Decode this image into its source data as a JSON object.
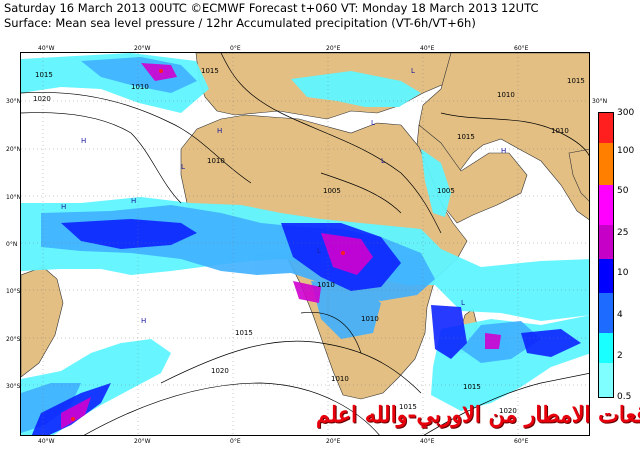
{
  "header": {
    "line1": "Saturday 16 March 2013 00UTC ©ECMWF Forecast t+060 VT: Monday 18 March 2013 12UTC",
    "line2": "Surface: Mean sea level pressure / 12hr Accumulated precipitation (VT-6h/VT+6h)"
  },
  "lon_ticks": [
    "40°W",
    "20°W",
    "0°E",
    "20°E",
    "40°E",
    "60°E"
  ],
  "lat_ticks": [
    "30°N",
    "20°N",
    "10°N",
    "0°N",
    "10°S",
    "20°S",
    "30°S"
  ],
  "isobar_labels": [
    "1015",
    "1010",
    "1020",
    "1015",
    "1005",
    "1010",
    "1015",
    "1010",
    "1005",
    "1010",
    "1015",
    "1020",
    "1010",
    "1010",
    "1015",
    "1015",
    "1020",
    "1015",
    "1010"
  ],
  "pressure_markers": [
    "H",
    "H",
    "L",
    "L",
    "H",
    "L",
    "H",
    "L",
    "L",
    "H",
    "H",
    "L"
  ],
  "legend": {
    "labels": [
      "300",
      "100",
      "50",
      "25",
      "10",
      "4",
      "2",
      "0.5"
    ],
    "colors": [
      "#ff1f1f",
      "#ff7f00",
      "#ff00ff",
      "#c600c6",
      "#0000ff",
      "#1e6bff",
      "#19ffff",
      "#7fffff",
      "#cfffff"
    ]
  },
  "overlay": {
    "arabic_text": "توقعات الامطار من الاوربي-والله اعلم"
  },
  "colors": {
    "ocean": "#ffffff",
    "land": "#e3bf84",
    "precip_light": "#5ff5ff",
    "precip_mid": "#3fb0ff",
    "precip_heavy": "#0a1fff",
    "precip_extreme": "#d000d0",
    "isobar": "#000000",
    "overlay_text": "#e8000d"
  }
}
